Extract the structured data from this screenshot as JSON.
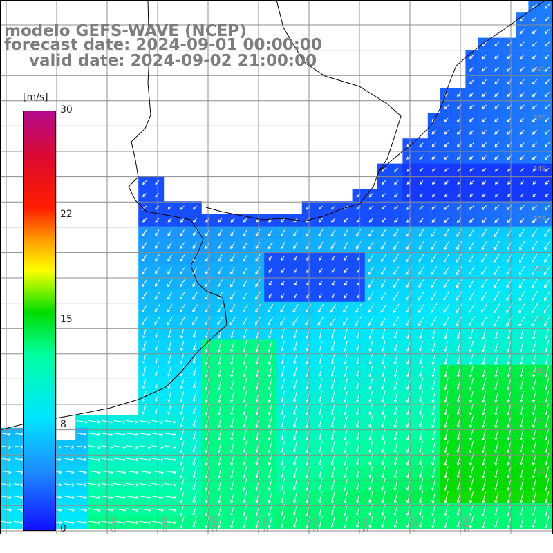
{
  "title": {
    "line1": "modelo GEFS-WAVE (NCEP)",
    "line2": "forecast date: 2024-09-01 00:00:00",
    "line3": "valid date: 2024-09-02 21:00:00"
  },
  "colorbar": {
    "unit": "[m/s]",
    "ticks": [
      "30",
      "22",
      "15",
      "8",
      "0"
    ],
    "tick_values": [
      30,
      22,
      15,
      8,
      0
    ],
    "colors": [
      "#1010ff",
      "#1e8cff",
      "#00e5ff",
      "#00ffa0",
      "#00dc00",
      "#7cf000",
      "#ffff00",
      "#ffa000",
      "#ff1e00",
      "#e00a2a",
      "#b40a8c"
    ]
  },
  "map": {
    "lat_labels": [
      "32S",
      "33S",
      "34S",
      "35S",
      "36S",
      "37S",
      "38S",
      "39S",
      "40S"
    ],
    "lat_values": [
      -32,
      -33,
      -34,
      -35,
      -36,
      -37,
      -38,
      -39,
      -40
    ],
    "lon_labels": [
      "60W",
      "59W",
      "58W",
      "57W",
      "56W",
      "55W",
      "54W",
      "53W"
    ],
    "lon_values": [
      -60,
      -59,
      -58,
      -57,
      -56,
      -55,
      -54,
      -53
    ],
    "land_color": "#ffffff",
    "grid_color": "#8c8c8c",
    "coast_color": "#000000",
    "arrow_color": "#ffffff"
  }
}
